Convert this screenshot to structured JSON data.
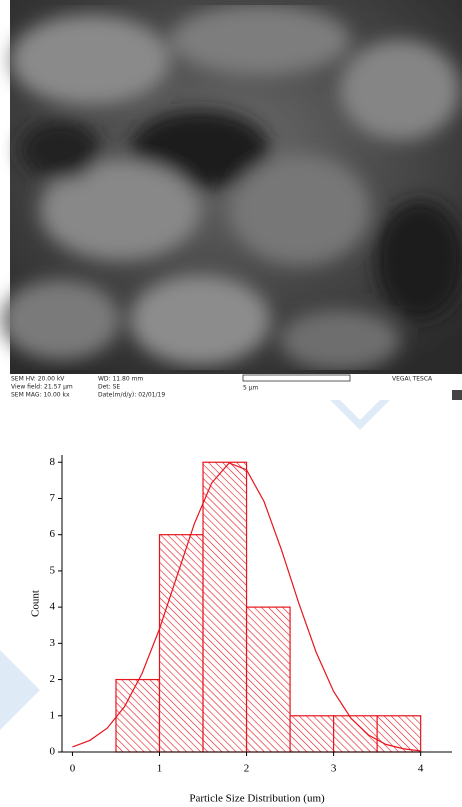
{
  "image": {
    "info": [
      "SEM HV: 20.00 kV",
      "View field: 21.57 μm",
      "SEM MAG: 10.00 kx",
      "WD: 11.80 mm",
      "Det: SE",
      "Date(m/d/y): 02/01/19"
    ],
    "scale_label": "5 μm",
    "brand": "VEGA\\ TESCA"
  },
  "chart_data": {
    "type": "histogram",
    "xlabel": "Particle Size Distribution (um)",
    "ylabel": "Count",
    "bins": [
      0.5,
      1,
      1.5,
      2,
      2.5,
      3,
      3.5,
      4
    ],
    "values": [
      2,
      6,
      8,
      4,
      1,
      1,
      1
    ],
    "color": "#e8141c",
    "xlim": [
      -0.12,
      4.36
    ],
    "ylim": [
      0,
      8.2
    ],
    "xticks": [
      0,
      1,
      2,
      3,
      4
    ],
    "yticks": [
      0,
      1,
      2,
      3,
      4,
      5,
      6,
      7,
      8
    ],
    "fit": {
      "x": [
        0,
        0.2,
        0.4,
        0.6,
        0.8,
        1.0,
        1.2,
        1.4,
        1.6,
        1.8,
        2.0,
        2.2,
        2.4,
        2.6,
        2.8,
        3.0,
        3.2,
        3.4,
        3.6,
        3.8,
        4.0
      ],
      "values": [
        0.14,
        0.32,
        0.66,
        1.26,
        2.17,
        3.4,
        4.85,
        6.3,
        7.43,
        7.98,
        7.79,
        6.92,
        5.59,
        4.11,
        2.75,
        1.67,
        0.93,
        0.47,
        0.21,
        0.09,
        0.03
      ]
    }
  }
}
